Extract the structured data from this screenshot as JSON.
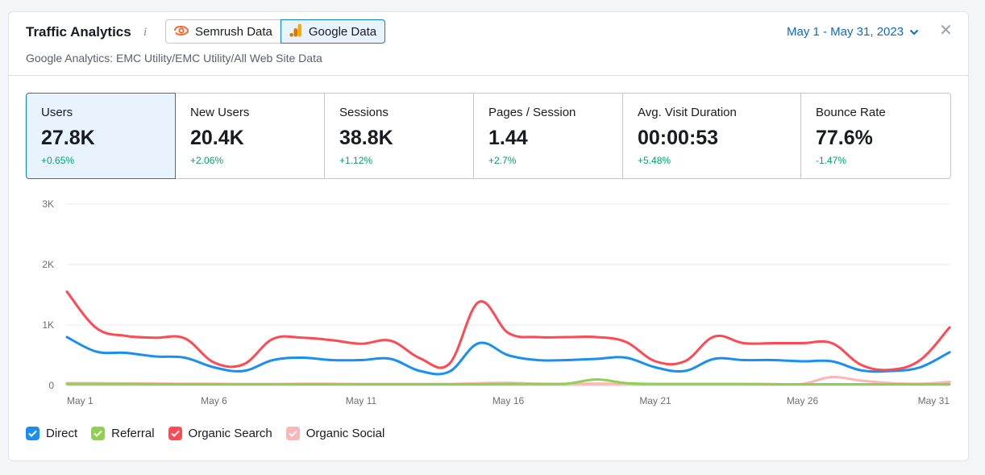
{
  "header": {
    "title": "Traffic Analytics",
    "subtitle": "Google Analytics: EMC Utility/EMC Utility/All Web Site Data",
    "source_tabs": [
      {
        "label": "Semrush Data",
        "icon": "semrush-icon",
        "active": false
      },
      {
        "label": "Google Data",
        "icon": "google-analytics-icon",
        "active": true
      }
    ],
    "date_range": "May 1 - May 31, 2023"
  },
  "metrics": [
    {
      "label": "Users",
      "value": "27.8K",
      "delta": "+0.65%",
      "active": true
    },
    {
      "label": "New Users",
      "value": "20.4K",
      "delta": "+2.06%",
      "active": false
    },
    {
      "label": "Sessions",
      "value": "38.8K",
      "delta": "+1.12%",
      "active": false
    },
    {
      "label": "Pages / Session",
      "value": "1.44",
      "delta": "+2.7%",
      "active": false
    },
    {
      "label": "Avg. Visit Duration",
      "value": "00:00:53",
      "delta": "+5.48%",
      "active": false
    },
    {
      "label": "Bounce Rate",
      "value": "77.6%",
      "delta": "-1.47%",
      "active": false
    }
  ],
  "chart_data": {
    "type": "line",
    "y_ticks": [
      "0",
      "1K",
      "2K",
      "3K"
    ],
    "ylim": [
      0,
      3000
    ],
    "x_ticks": [
      "May 1",
      "May 6",
      "May 11",
      "May 16",
      "May 21",
      "May 26",
      "May 31"
    ],
    "x": [
      1,
      2,
      3,
      4,
      5,
      6,
      7,
      8,
      9,
      10,
      11,
      12,
      13,
      14,
      15,
      16,
      17,
      18,
      19,
      20,
      21,
      22,
      23,
      24,
      25,
      26,
      27,
      28,
      29,
      30,
      31
    ],
    "grid": true,
    "legend_position": "bottom-left",
    "series": [
      {
        "name": "Direct",
        "color": "#1a8ff2",
        "values": [
          800,
          560,
          540,
          480,
          460,
          300,
          240,
          420,
          460,
          420,
          420,
          440,
          240,
          230,
          700,
          500,
          420,
          420,
          440,
          460,
          300,
          240,
          440,
          420,
          420,
          400,
          400,
          250,
          240,
          300,
          550
        ]
      },
      {
        "name": "Referral",
        "color": "#8fd14f",
        "values": [
          25,
          25,
          25,
          20,
          20,
          20,
          20,
          20,
          20,
          20,
          20,
          20,
          20,
          20,
          20,
          25,
          25,
          30,
          100,
          40,
          25,
          25,
          25,
          25,
          20,
          20,
          20,
          20,
          20,
          20,
          20
        ]
      },
      {
        "name": "Organic Search",
        "color": "#ff4953",
        "values": [
          1550,
          950,
          820,
          790,
          780,
          380,
          350,
          770,
          790,
          750,
          690,
          740,
          450,
          360,
          1380,
          870,
          800,
          800,
          800,
          720,
          400,
          400,
          810,
          700,
          700,
          700,
          700,
          340,
          260,
          420,
          960
        ]
      },
      {
        "name": "Organic Social",
        "color": "#ffb4b8",
        "values": [
          40,
          40,
          35,
          35,
          30,
          30,
          25,
          25,
          30,
          30,
          25,
          25,
          25,
          25,
          40,
          45,
          30,
          30,
          30,
          30,
          25,
          25,
          25,
          25,
          25,
          25,
          140,
          80,
          40,
          30,
          60
        ]
      }
    ]
  },
  "legend": [
    {
      "label": "Direct",
      "color": "#1a8ff2"
    },
    {
      "label": "Referral",
      "color": "#8fd14f"
    },
    {
      "label": "Organic Search",
      "color": "#ff4953"
    },
    {
      "label": "Organic Social",
      "color": "#ffb4b8"
    }
  ]
}
